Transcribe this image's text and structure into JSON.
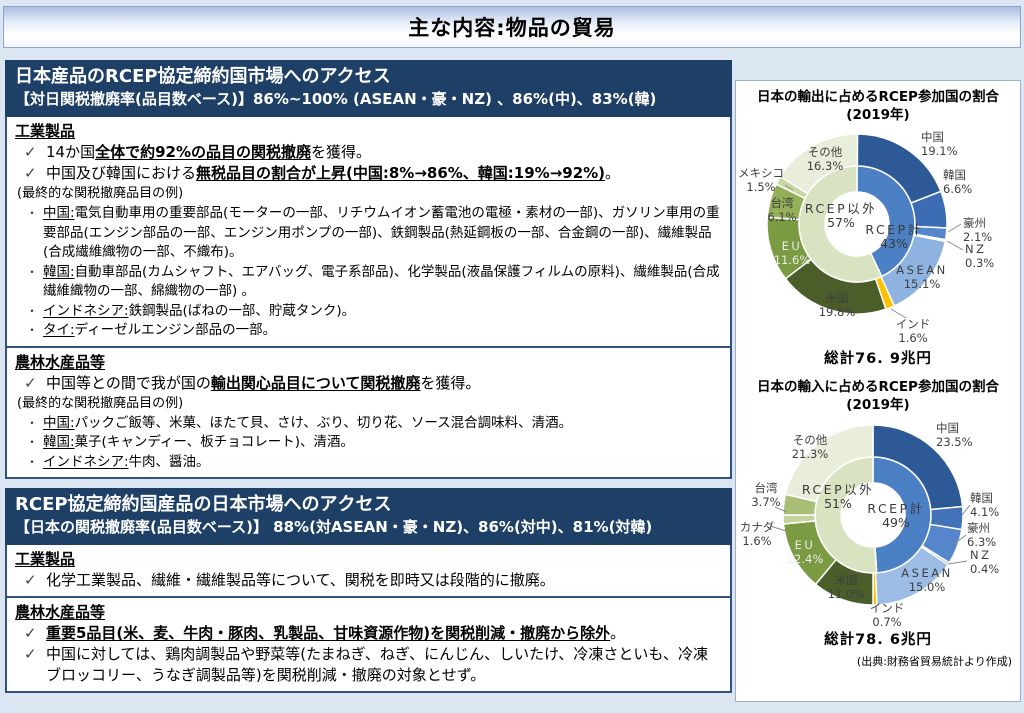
{
  "title": "主な内容:物品の貿易",
  "glyphs": {
    "check": "✓",
    "bullet": "・"
  },
  "colors": {
    "header_bg": "#1e3f66",
    "box_border": "#32517f",
    "slide_bg": "#dce6f2",
    "india_accent": "#ffc000"
  },
  "left": {
    "s1": {
      "h1": "日本産品のRCEP協定締約国市場へのアクセス",
      "h2": "【対日関税撤廃率(品目数ベース)】86%~100% (ASEAN・豪・NZ) 、86%(中)、83%(韓)",
      "ind": {
        "heading": "工業製品",
        "c1": {
          "pre": "14か国",
          "strong": "全体で約92%の品目の関税撤廃",
          "post": "を獲得。"
        },
        "c2": {
          "pre": "中国及び韓国における",
          "strong": "無税品目の割合が上昇(中国:8%→86%、韓国:19%→92%)",
          "post": "。"
        },
        "note": "(最終的な関税撤廃品目の例)",
        "items": [
          {
            "label": "中国:",
            "text": "電気自動車用の重要部品(モーターの一部、リチウムイオン蓄電池の電極・素材の一部)、ガソリン車用の重要部品(エンジン部品の一部、エンジン用ポンプの一部)、鉄鋼製品(熱延鋼板の一部、合金鋼の一部)、繊維製品(合成繊維織物の一部、不織布)。"
          },
          {
            "label": "韓国:",
            "text": "自動車部品(カムシャフト、エアバッグ、電子系部品)、化学製品(液晶保護フィルムの原料)、繊維製品(合成繊維織物の一部、綿織物の一部) 。"
          },
          {
            "label": "インドネシア:",
            "text": "鉄鋼製品(ばねの一部、貯蔵タンク)。"
          },
          {
            "label": "タイ:",
            "text": "ディーゼルエンジン部品の一部。"
          }
        ]
      },
      "agri": {
        "heading": "農林水産品等",
        "c1": {
          "pre": "中国等との間で我が国の",
          "strong": "輸出関心品目について関税撤廃",
          "post": "を獲得。"
        },
        "note": "(最終的な関税撤廃品目の例)",
        "items": [
          {
            "label": "中国:",
            "text": "パックご飯等、米菓、ほたて貝、さけ、ぶり、切り花、ソース混合調味料、清酒。"
          },
          {
            "label": "韓国:",
            "text": "菓子(キャンディー、板チョコレート)、清酒。"
          },
          {
            "label": "インドネシア:",
            "text": "牛肉、醤油。"
          }
        ]
      }
    },
    "s2": {
      "h1": "RCEP協定締約国産品の日本市場へのアクセス",
      "h2": "【日本の関税撤廃率(品目数ベース)】 88%(対ASEAN・豪・NZ)、86%(対中)、81%(対韓)",
      "ind": {
        "heading": "工業製品",
        "c1": "化学工業製品、繊維・繊維製品等について、関税を即時又は段階的に撤廃。"
      },
      "agri": {
        "heading": "農林水産品等",
        "c1": {
          "strong": "重要5品目(米、麦、牛肉・豚肉、乳製品、甘味資源作物)を関税削減・撤廃から除外",
          "post": "。"
        },
        "c2": "中国に対しては、鶏肉調製品や野菜等(たまねぎ、ねぎ、にんじん、しいたけ、冷凍さといも、冷凍ブロッコリー、うなぎ調製品等)を関税削減・撤廃の対象とせず。"
      }
    }
  },
  "source_note": "(出典:財務省貿易統計より作成)",
  "chart_data": [
    {
      "type": "donut",
      "title_line1": "日本の輸出に占めるRCEP参加国の割合",
      "title_line2": "(2019年)",
      "total": "総計76. 9兆円",
      "inner": [
        {
          "name": "RCEP計",
          "pct": "43%",
          "value": 43,
          "color": "#4b80c4"
        },
        {
          "name": "RCEP以外",
          "pct": "57%",
          "value": 57,
          "color": "#d9e3c2"
        }
      ],
      "outer": [
        {
          "name": "中国",
          "pct": "19.1%",
          "value": 19.1,
          "color": "#2d5a96"
        },
        {
          "name": "韓国",
          "pct": "6.6%",
          "value": 6.6,
          "color": "#3c6cb4"
        },
        {
          "name": "豪州",
          "pct": "2.1%",
          "value": 2.1,
          "color": "#5585ca"
        },
        {
          "name": "NZ",
          "pct": "0.3%",
          "value": 0.3,
          "color": "#7ba3da"
        },
        {
          "name": "ASEAN",
          "pct": "15.1%",
          "value": 15.1,
          "color": "#8fb3e0"
        },
        {
          "name": "インド",
          "pct": "1.6%",
          "value": 1.6,
          "color": "#ffc000"
        },
        {
          "name": "米国",
          "pct": "19.8%",
          "value": 19.8,
          "color": "#4b5e2a"
        },
        {
          "name": "EU",
          "pct": "11.6%",
          "value": 11.6,
          "color": "#7b9b42"
        },
        {
          "name": "台湾",
          "pct": "6.1%",
          "value": 6.1,
          "color": "#93af58"
        },
        {
          "name": "メキシコ",
          "pct": "1.5%",
          "value": 1.5,
          "color": "#c6d7a2"
        },
        {
          "name": "その他",
          "pct": "16.3%",
          "value": 16.3,
          "color": "#e9eeda"
        }
      ]
    },
    {
      "type": "donut",
      "title_line1": "日本の輸入に占めるRCEP参加国の割合",
      "title_line2": "(2019年)",
      "total": "総計78. 6兆円",
      "inner": [
        {
          "name": "RCEP計",
          "pct": "49%",
          "value": 49,
          "color": "#4b80c4"
        },
        {
          "name": "RCEP以外",
          "pct": "51%",
          "value": 51,
          "color": "#d9e3c2"
        }
      ],
      "outer": [
        {
          "name": "中国",
          "pct": "23.5%",
          "value": 23.5,
          "color": "#2d5a96"
        },
        {
          "name": "韓国",
          "pct": "4.1%",
          "value": 4.1,
          "color": "#4273b8"
        },
        {
          "name": "豪州",
          "pct": "6.3%",
          "value": 6.3,
          "color": "#5585ca"
        },
        {
          "name": "NZ",
          "pct": "0.4%",
          "value": 0.4,
          "color": "#7ba3da"
        },
        {
          "name": "ASEAN",
          "pct": "15.0%",
          "value": 15.0,
          "color": "#9dbce6"
        },
        {
          "name": "インド",
          "pct": "0.7%",
          "value": 0.7,
          "color": "#ffc000"
        },
        {
          "name": "米国",
          "pct": "11.0%",
          "value": 11.0,
          "color": "#4b5e2a"
        },
        {
          "name": "EU",
          "pct": "12.4%",
          "value": 12.4,
          "color": "#7b9b42"
        },
        {
          "name": "カナダ",
          "pct": "1.6%",
          "value": 1.6,
          "color": "#c2d49c"
        },
        {
          "name": "台湾",
          "pct": "3.7%",
          "value": 3.7,
          "color": "#a9bf77"
        },
        {
          "name": "その他",
          "pct": "21.3%",
          "value": 21.3,
          "color": "#e9eeda"
        }
      ]
    }
  ]
}
